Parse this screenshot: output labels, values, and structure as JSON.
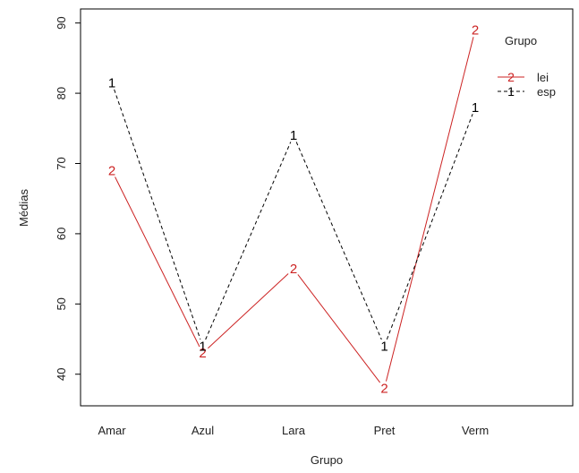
{
  "chart_data": {
    "type": "line",
    "xlabel": "Grupo",
    "ylabel": "Médias",
    "categories": [
      "Amar",
      "Azul",
      "Lara",
      "Pret",
      "Verm"
    ],
    "ylim": [
      35.5,
      92
    ],
    "yticks": [
      40,
      50,
      60,
      70,
      80,
      90
    ],
    "legend": {
      "title": "Grupo",
      "position": "top-right",
      "entries": [
        "lei",
        "esp"
      ]
    },
    "series": [
      {
        "name": "lei",
        "marker": "2",
        "color": "#cc2222",
        "line": "solid",
        "values": [
          69,
          43,
          55,
          38,
          89
        ]
      },
      {
        "name": "esp",
        "marker": "1",
        "color": "#000000",
        "line": "dashed",
        "values": [
          81.5,
          44,
          74,
          44,
          78
        ]
      }
    ]
  }
}
